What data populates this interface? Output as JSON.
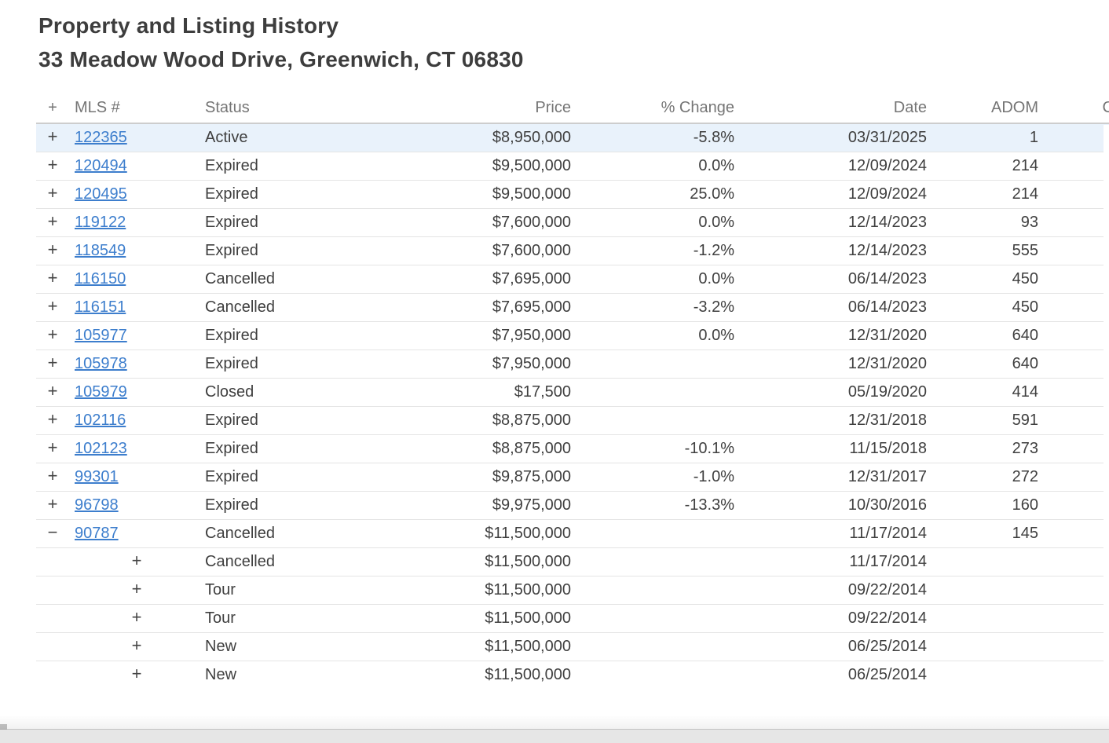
{
  "header": {
    "title": "Property and Listing History",
    "subtitle": "33 Meadow Wood Drive, Greenwich, CT 06830"
  },
  "table": {
    "columns": {
      "expander": "+",
      "mls": "MLS #",
      "status": "Status",
      "price": "Price",
      "pct": "% Change",
      "date": "Date",
      "adom": "ADOM",
      "cdom": "CDOM"
    },
    "rows": [
      {
        "expander": "+",
        "mls": "122365",
        "status": "Active",
        "price": "$8,950,000",
        "pct": "-5.8%",
        "date": "03/31/2025",
        "adom": "1",
        "cdom": "",
        "child": false,
        "highlighted": true,
        "expanded": false
      },
      {
        "expander": "+",
        "mls": "120494",
        "status": "Expired",
        "price": "$9,500,000",
        "pct": "0.0%",
        "date": "12/09/2024",
        "adom": "214",
        "cdom": "",
        "child": false,
        "highlighted": false,
        "expanded": false
      },
      {
        "expander": "+",
        "mls": "120495",
        "status": "Expired",
        "price": "$9,500,000",
        "pct": "25.0%",
        "date": "12/09/2024",
        "adom": "214",
        "cdom": "",
        "child": false,
        "highlighted": false,
        "expanded": false
      },
      {
        "expander": "+",
        "mls": "119122",
        "status": "Expired",
        "price": "$7,600,000",
        "pct": "0.0%",
        "date": "12/14/2023",
        "adom": "93",
        "cdom": "",
        "child": false,
        "highlighted": false,
        "expanded": false
      },
      {
        "expander": "+",
        "mls": "118549",
        "status": "Expired",
        "price": "$7,600,000",
        "pct": "-1.2%",
        "date": "12/14/2023",
        "adom": "555",
        "cdom": "",
        "child": false,
        "highlighted": false,
        "expanded": false
      },
      {
        "expander": "+",
        "mls": "116150",
        "status": "Cancelled",
        "price": "$7,695,000",
        "pct": "0.0%",
        "date": "06/14/2023",
        "adom": "450",
        "cdom": "",
        "child": false,
        "highlighted": false,
        "expanded": false
      },
      {
        "expander": "+",
        "mls": "116151",
        "status": "Cancelled",
        "price": "$7,695,000",
        "pct": "-3.2%",
        "date": "06/14/2023",
        "adom": "450",
        "cdom": "",
        "child": false,
        "highlighted": false,
        "expanded": false
      },
      {
        "expander": "+",
        "mls": "105977",
        "status": "Expired",
        "price": "$7,950,000",
        "pct": "0.0%",
        "date": "12/31/2020",
        "adom": "640",
        "cdom": "",
        "child": false,
        "highlighted": false,
        "expanded": false
      },
      {
        "expander": "+",
        "mls": "105978",
        "status": "Expired",
        "price": "$7,950,000",
        "pct": "",
        "date": "12/31/2020",
        "adom": "640",
        "cdom": "",
        "child": false,
        "highlighted": false,
        "expanded": false
      },
      {
        "expander": "+",
        "mls": "105979",
        "status": "Closed",
        "price": "$17,500",
        "pct": "",
        "date": "05/19/2020",
        "adom": "414",
        "cdom": "",
        "child": false,
        "highlighted": false,
        "expanded": false
      },
      {
        "expander": "+",
        "mls": "102116",
        "status": "Expired",
        "price": "$8,875,000",
        "pct": "",
        "date": "12/31/2018",
        "adom": "591",
        "cdom": "",
        "child": false,
        "highlighted": false,
        "expanded": false
      },
      {
        "expander": "+",
        "mls": "102123",
        "status": "Expired",
        "price": "$8,875,000",
        "pct": "-10.1%",
        "date": "11/15/2018",
        "adom": "273",
        "cdom": "",
        "child": false,
        "highlighted": false,
        "expanded": false
      },
      {
        "expander": "+",
        "mls": "99301",
        "status": "Expired",
        "price": "$9,875,000",
        "pct": "-1.0%",
        "date": "12/31/2017",
        "adom": "272",
        "cdom": "",
        "child": false,
        "highlighted": false,
        "expanded": false
      },
      {
        "expander": "+",
        "mls": "96798",
        "status": "Expired",
        "price": "$9,975,000",
        "pct": "-13.3%",
        "date": "10/30/2016",
        "adom": "160",
        "cdom": "",
        "child": false,
        "highlighted": false,
        "expanded": false
      },
      {
        "expander": "−",
        "mls": "90787",
        "status": "Cancelled",
        "price": "$11,500,000",
        "pct": "",
        "date": "11/17/2014",
        "adom": "145",
        "cdom": "",
        "child": false,
        "highlighted": false,
        "expanded": true
      },
      {
        "expander": "+",
        "mls": "",
        "status": "Cancelled",
        "price": "$11,500,000",
        "pct": "",
        "date": "11/17/2014",
        "adom": "",
        "cdom": "",
        "child": true,
        "highlighted": false,
        "expanded": false
      },
      {
        "expander": "+",
        "mls": "",
        "status": "Tour",
        "price": "$11,500,000",
        "pct": "",
        "date": "09/22/2014",
        "adom": "",
        "cdom": "",
        "child": true,
        "highlighted": false,
        "expanded": false
      },
      {
        "expander": "+",
        "mls": "",
        "status": "Tour",
        "price": "$11,500,000",
        "pct": "",
        "date": "09/22/2014",
        "adom": "",
        "cdom": "",
        "child": true,
        "highlighted": false,
        "expanded": false
      },
      {
        "expander": "+",
        "mls": "",
        "status": "New",
        "price": "$11,500,000",
        "pct": "",
        "date": "06/25/2014",
        "adom": "",
        "cdom": "",
        "child": true,
        "highlighted": false,
        "expanded": false
      },
      {
        "expander": "+",
        "mls": "",
        "status": "New",
        "price": "$11,500,000",
        "pct": "",
        "date": "06/25/2014",
        "adom": "",
        "cdom": "",
        "child": true,
        "highlighted": false,
        "expanded": false
      }
    ]
  },
  "colors": {
    "link": "#3d7ecd",
    "highlight_row": "#e9f2fb",
    "text": "#3f3f3f",
    "header_text": "#757575",
    "row_border": "#e4e4e4",
    "page_bottom_strip": "#e6e6e6"
  }
}
